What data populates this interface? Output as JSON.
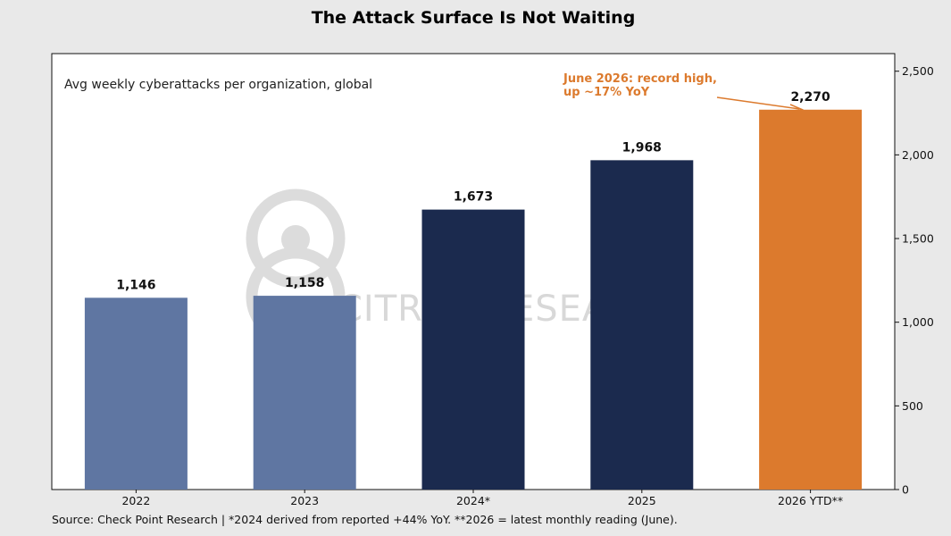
{
  "chart_data": {
    "type": "bar",
    "title": "The Attack Surface Is Not Waiting",
    "subtitle": "Avg weekly cyberattacks per organization, global",
    "categories": [
      "2022",
      "2023",
      "2024*",
      "2025",
      "2026 YTD**"
    ],
    "values": [
      1146,
      1158,
      1673,
      1968,
      2270
    ],
    "value_labels": [
      "1,146",
      "1,158",
      "1,673",
      "1,968",
      "2,270"
    ],
    "bar_colors": [
      "#5f76a2",
      "#5f76a2",
      "#1b2a4e",
      "#1b2a4e",
      "#dc7a2d"
    ],
    "ylim": [
      0,
      2600
    ],
    "yticks": [
      0,
      500,
      1000,
      1500,
      2000,
      2500
    ],
    "ytick_labels": [
      "0",
      "500",
      "1,000",
      "1,500",
      "2,000",
      "2,500"
    ],
    "y_axis_side": "right",
    "grid": false,
    "annotation": {
      "lines": [
        "June 2026: record high,",
        "up ~17% YoY"
      ],
      "color": "#dc7a2d",
      "points_to": "2026 YTD**"
    },
    "watermark": "CITRINI RESEARCH",
    "source": "Source: Check Point Research  |  *2024 derived from reported +44% YoY.  **2026 = latest monthly reading (June)."
  }
}
